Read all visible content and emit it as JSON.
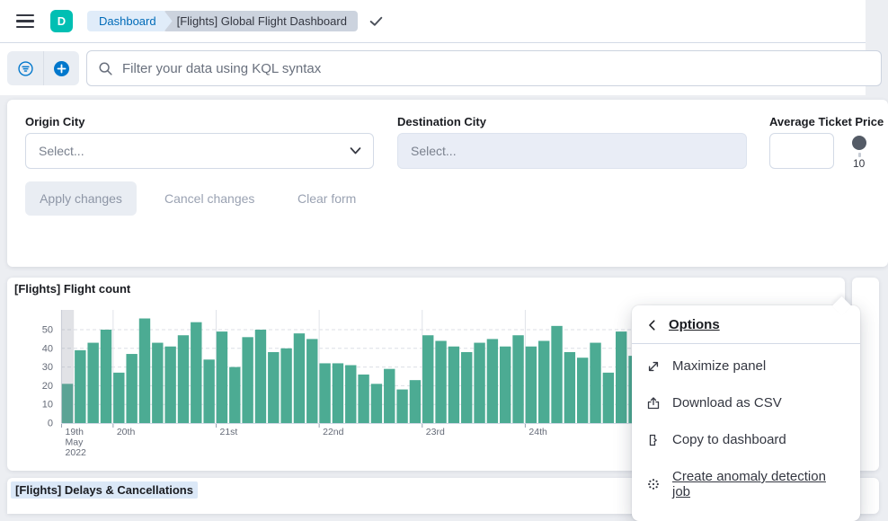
{
  "header": {
    "logo_letter": "D",
    "breadcrumbs": {
      "first": "Dashboard",
      "last": "[Flights] Global Flight Dashboard"
    }
  },
  "query_bar": {
    "placeholder": "Filter your data using KQL syntax"
  },
  "filters": {
    "origin_city": {
      "label": "Origin City",
      "placeholder": "Select..."
    },
    "destination_city": {
      "label": "Destination City",
      "placeholder": "Select..."
    },
    "avg_ticket_price": {
      "label": "Average Ticket Price",
      "value": "",
      "slider_min_label": "10"
    },
    "apply_label": "Apply changes",
    "cancel_label": "Cancel changes",
    "clear_label": "Clear form"
  },
  "panels": {
    "flight_count": {
      "title": "[Flights] Flight count"
    },
    "delays": {
      "title": "[Flights] Delays & Cancellations"
    }
  },
  "context_menu": {
    "title": "Options",
    "items": [
      {
        "label": "Maximize panel"
      },
      {
        "label": "Download as CSV"
      },
      {
        "label": "Copy to dashboard"
      },
      {
        "label": "Create anomaly detection job"
      }
    ]
  },
  "colors": {
    "accent_blue": "#0077cc",
    "badge_teal": "#00bfb3",
    "bar_green": "#4cab93"
  },
  "chart_data": {
    "type": "bar",
    "title": "[Flights] Flight count",
    "interval": "3h",
    "bar_color": "#4cab93",
    "values": [
      21,
      39,
      43,
      50,
      27,
      37,
      56,
      43,
      41,
      47,
      54,
      34,
      49,
      30,
      46,
      50,
      38,
      40,
      48,
      45,
      32,
      32,
      31,
      26,
      21,
      29,
      18,
      23,
      47,
      44,
      41,
      38,
      43,
      45,
      41,
      47,
      41,
      44,
      52,
      38,
      35,
      43,
      27,
      49,
      36
    ],
    "y_ticks": [
      0,
      10,
      20,
      30,
      40,
      50
    ],
    "ylim": [
      0,
      60
    ],
    "x_day_ticks": [
      {
        "label_lines": [
          "19th",
          "May",
          "2022"
        ],
        "bar_index": 0
      },
      {
        "label_lines": [
          "20th"
        ],
        "bar_index": 4
      },
      {
        "label_lines": [
          "21st"
        ],
        "bar_index": 12
      },
      {
        "label_lines": [
          "22nd"
        ],
        "bar_index": 20
      },
      {
        "label_lines": [
          "23rd"
        ],
        "bar_index": 28
      },
      {
        "label_lines": [
          "24th"
        ],
        "bar_index": 36
      }
    ],
    "partial_bucket_index": 0,
    "grid": true,
    "legend": false
  }
}
